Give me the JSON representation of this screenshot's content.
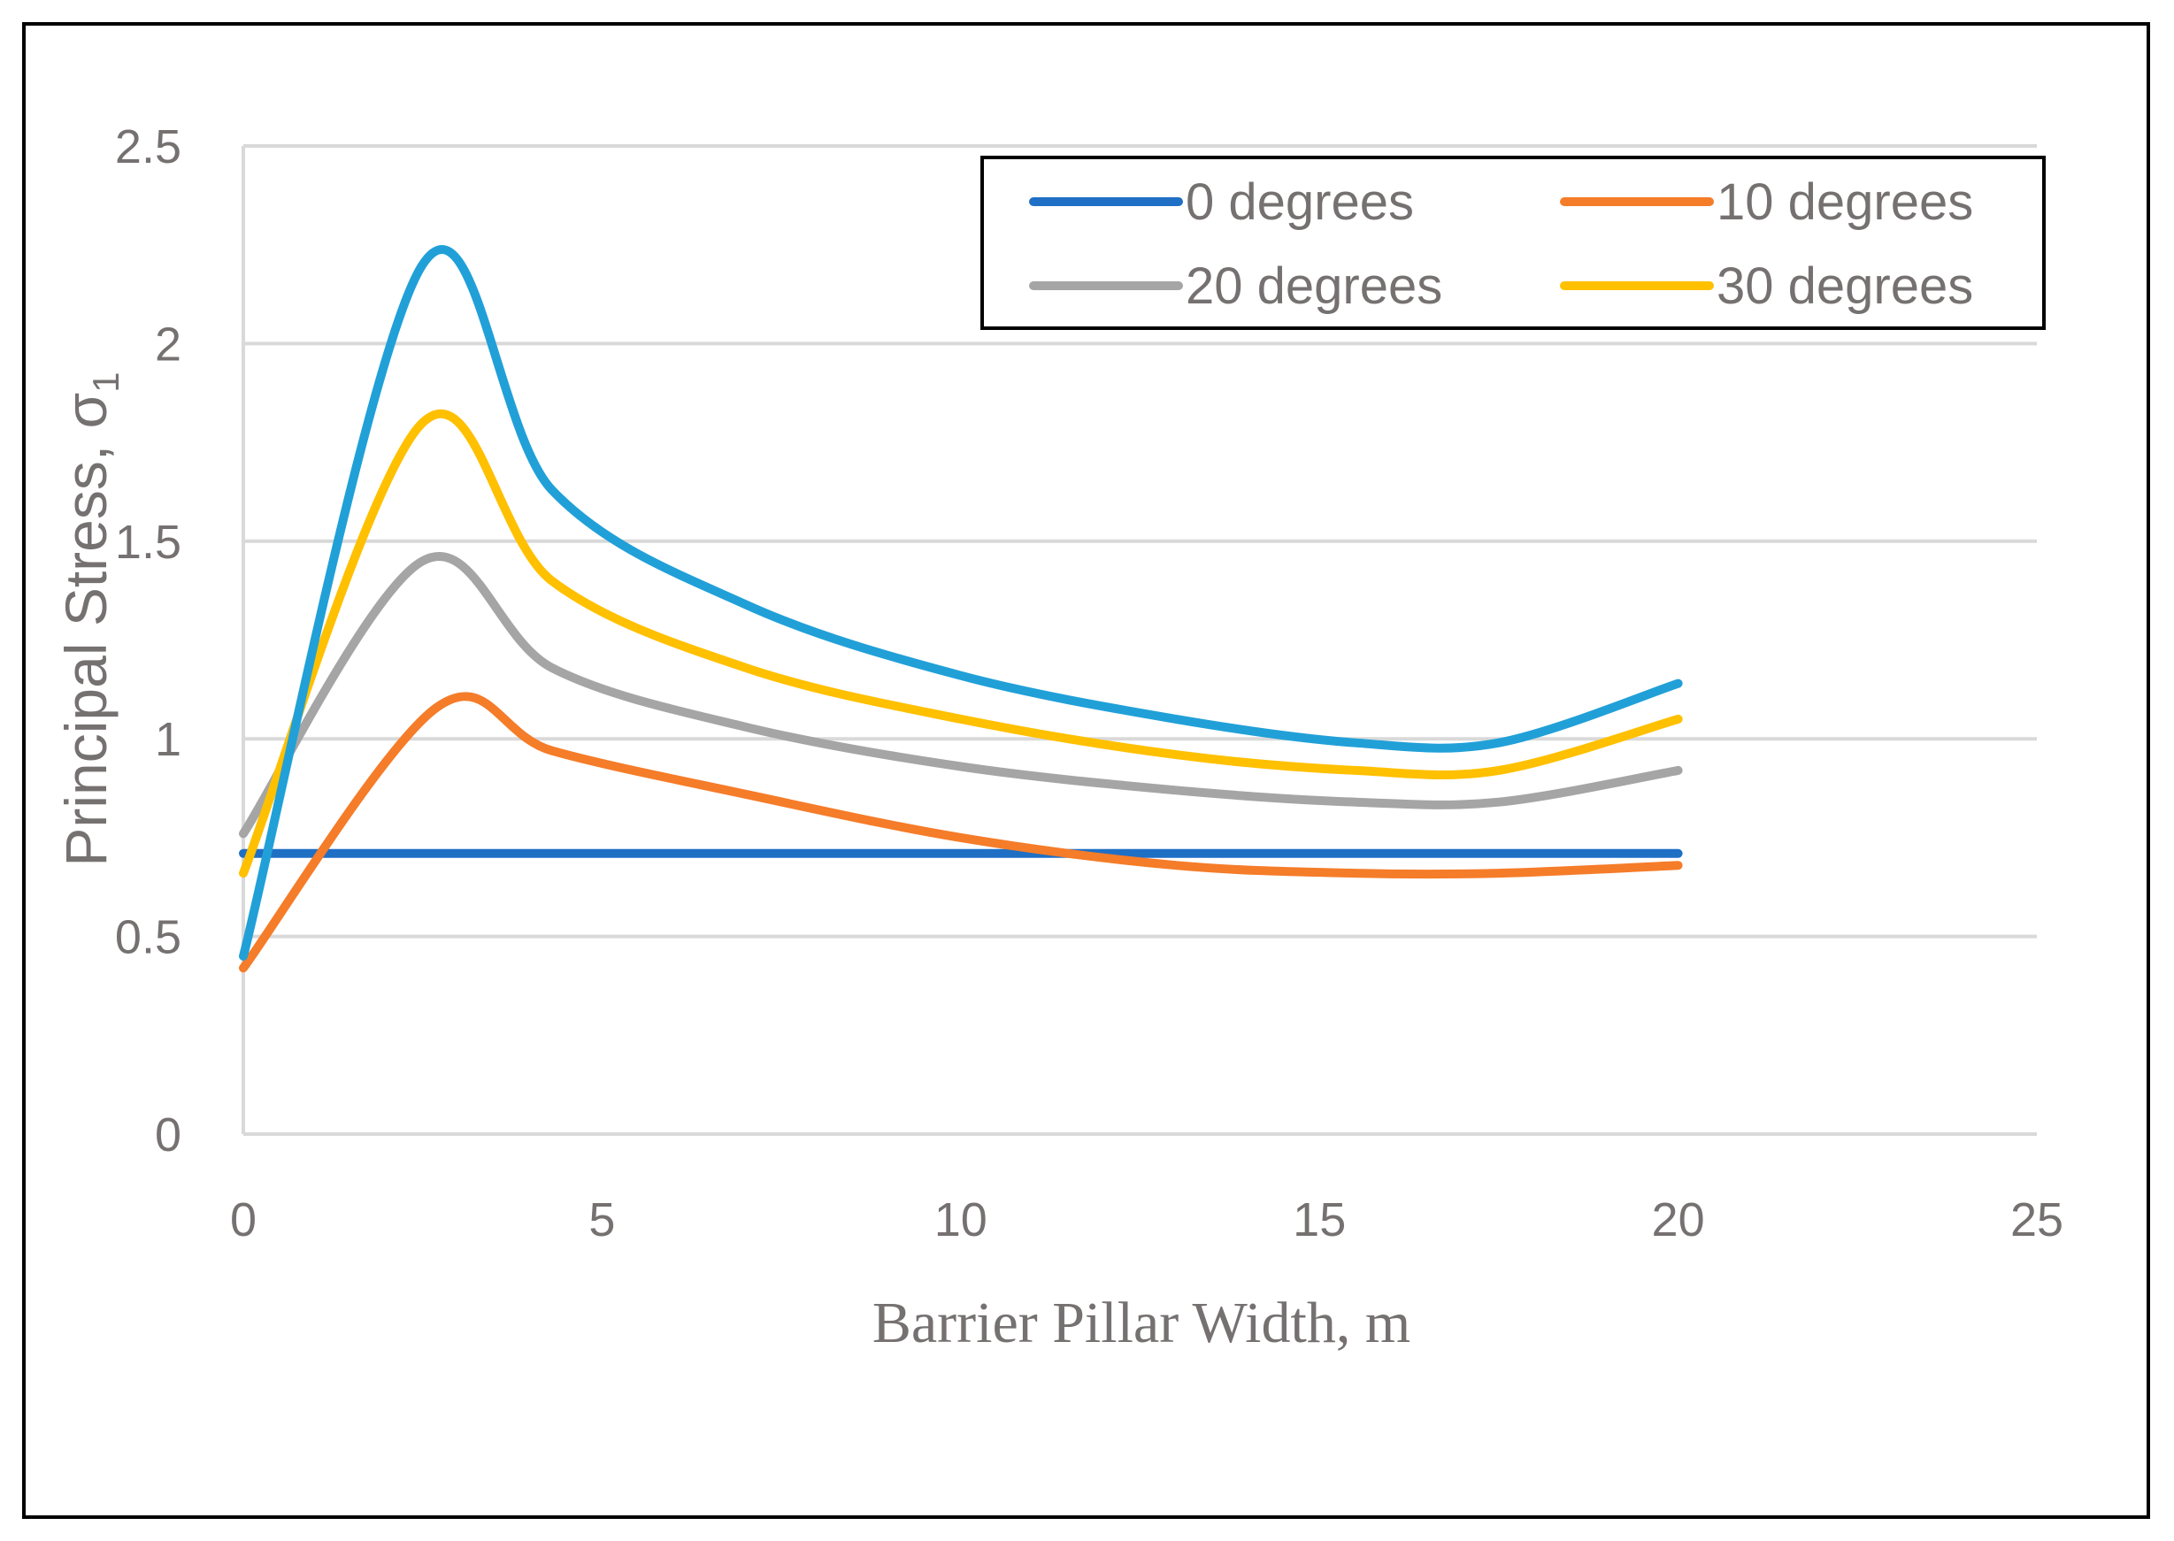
{
  "chart_data": {
    "type": "line",
    "title": "",
    "xlabel": "Barrier Pillar Width, m",
    "ylabel": "Principal Stress, σ",
    "ylabel_subscript": "1",
    "xlim": [
      0,
      25
    ],
    "ylim": [
      0,
      2.5
    ],
    "xticks": [
      0,
      5,
      10,
      15,
      20,
      25
    ],
    "yticks": [
      0,
      0.5,
      1,
      1.5,
      2,
      2.5
    ],
    "xtick_labels": [
      "0",
      "5",
      "10",
      "15",
      "20",
      "25"
    ],
    "ytick_labels": [
      "0",
      "0.5",
      "1",
      "1.5",
      "2",
      "2.5"
    ],
    "grid": "horizontal",
    "legend_position": "top-right",
    "series": [
      {
        "name": "0 degrees",
        "color": "#1F6FC5",
        "points": [
          [
            0,
            0.71
          ],
          [
            5,
            0.71
          ],
          [
            10,
            0.71
          ],
          [
            15,
            0.71
          ],
          [
            20,
            0.71
          ]
        ]
      },
      {
        "name": "10 degrees",
        "color": "#F57C29",
        "points": [
          [
            0,
            0.42
          ],
          [
            2.7,
            1.08
          ],
          [
            4.3,
            0.97
          ],
          [
            7,
            0.86
          ],
          [
            10,
            0.75
          ],
          [
            13,
            0.68
          ],
          [
            15.5,
            0.66
          ],
          [
            17.5,
            0.66
          ],
          [
            20,
            0.68
          ]
        ]
      },
      {
        "name": "20 degrees",
        "color": "#A5A5A5",
        "points": [
          [
            0,
            0.76
          ],
          [
            2.5,
            1.45
          ],
          [
            4.3,
            1.18
          ],
          [
            7,
            1.03
          ],
          [
            10,
            0.93
          ],
          [
            13,
            0.87
          ],
          [
            15.5,
            0.84
          ],
          [
            17.5,
            0.84
          ],
          [
            20,
            0.92
          ]
        ]
      },
      {
        "name": "30 degrees",
        "color": "#FFC000",
        "points": [
          [
            0,
            0.66
          ],
          [
            2.5,
            1.8
          ],
          [
            4.3,
            1.4
          ],
          [
            7,
            1.18
          ],
          [
            10,
            1.05
          ],
          [
            13,
            0.96
          ],
          [
            15.5,
            0.92
          ],
          [
            17.5,
            0.92
          ],
          [
            20,
            1.05
          ]
        ]
      },
      {
        "name": "",
        "color": "#21A0D8",
        "points": [
          [
            0,
            0.45
          ],
          [
            2.5,
            2.2
          ],
          [
            4.3,
            1.63
          ],
          [
            7,
            1.34
          ],
          [
            10,
            1.16
          ],
          [
            13,
            1.05
          ],
          [
            15.5,
            0.99
          ],
          [
            17.5,
            0.99
          ],
          [
            20,
            1.14
          ]
        ]
      }
    ]
  }
}
